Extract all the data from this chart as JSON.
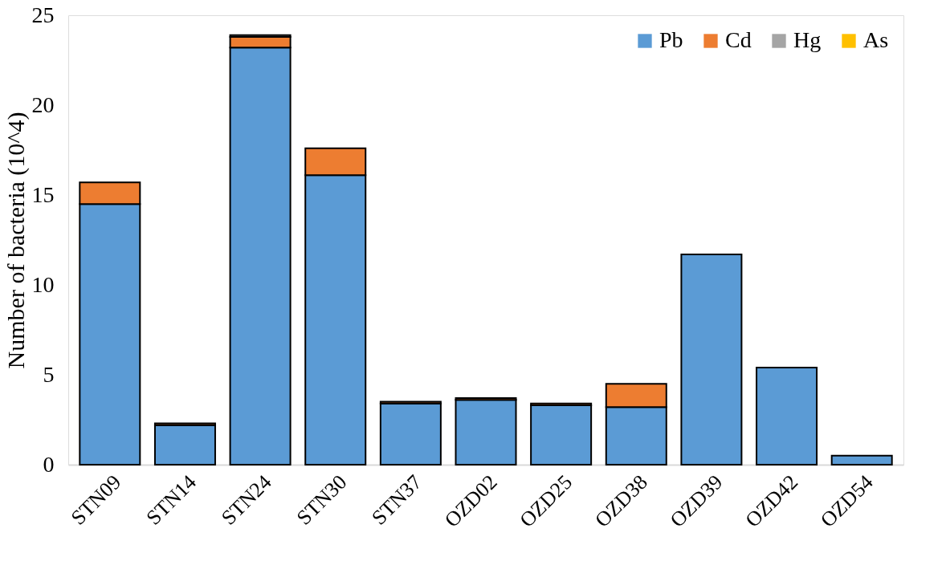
{
  "chart_data": {
    "type": "bar",
    "stacked": true,
    "ylabel": "Number of bacteria (10^4)",
    "categories": [
      "STN09",
      "STN14",
      "STN24",
      "STN30",
      "STN37",
      "OZD02",
      "OZD25",
      "OZD38",
      "OZD39",
      "OZD42",
      "OZD54"
    ],
    "series": [
      {
        "name": "Pb",
        "color": "#5b9bd5",
        "values": [
          14.5,
          2.2,
          23.2,
          16.1,
          3.4,
          3.6,
          3.3,
          3.2,
          11.7,
          5.4,
          0.5
        ]
      },
      {
        "name": "Cd",
        "color": "#ed7d31",
        "values": [
          1.2,
          0.1,
          0.6,
          1.5,
          0.1,
          0.1,
          0.1,
          1.3,
          0,
          0,
          0
        ]
      },
      {
        "name": "Hg",
        "color": "#a5a5a5",
        "values": [
          0,
          0,
          0.1,
          0,
          0,
          0,
          0,
          0,
          0,
          0,
          0
        ]
      },
      {
        "name": "As",
        "color": "#ffc000",
        "values": [
          0,
          0,
          0,
          0,
          0,
          0,
          0,
          0,
          0,
          0,
          0
        ]
      }
    ],
    "ylim": [
      0,
      25
    ],
    "yticks": [
      0,
      5,
      10,
      15,
      20,
      25
    ],
    "grid": false,
    "legend": "top right"
  }
}
